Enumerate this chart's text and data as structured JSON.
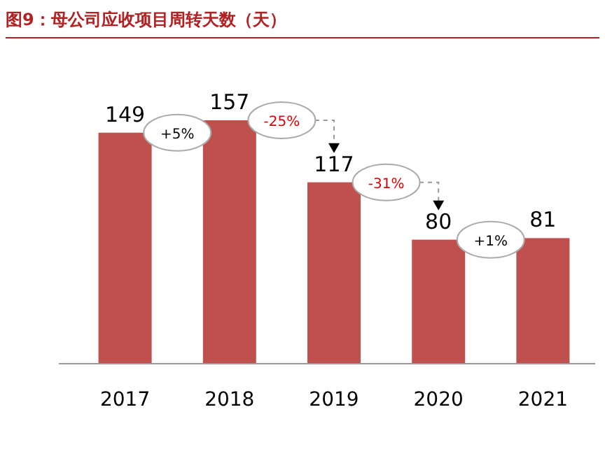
{
  "chart_data": {
    "type": "bar",
    "title": "图9：母公司应收项目周转天数（天）",
    "categories": [
      "2017",
      "2018",
      "2019",
      "2020",
      "2021"
    ],
    "values": [
      149,
      157,
      117,
      80,
      81
    ],
    "color": "#c0504d",
    "data_labels": true,
    "annotations": [
      "+5%",
      "-25%",
      "-31%",
      "+1%"
    ]
  }
}
